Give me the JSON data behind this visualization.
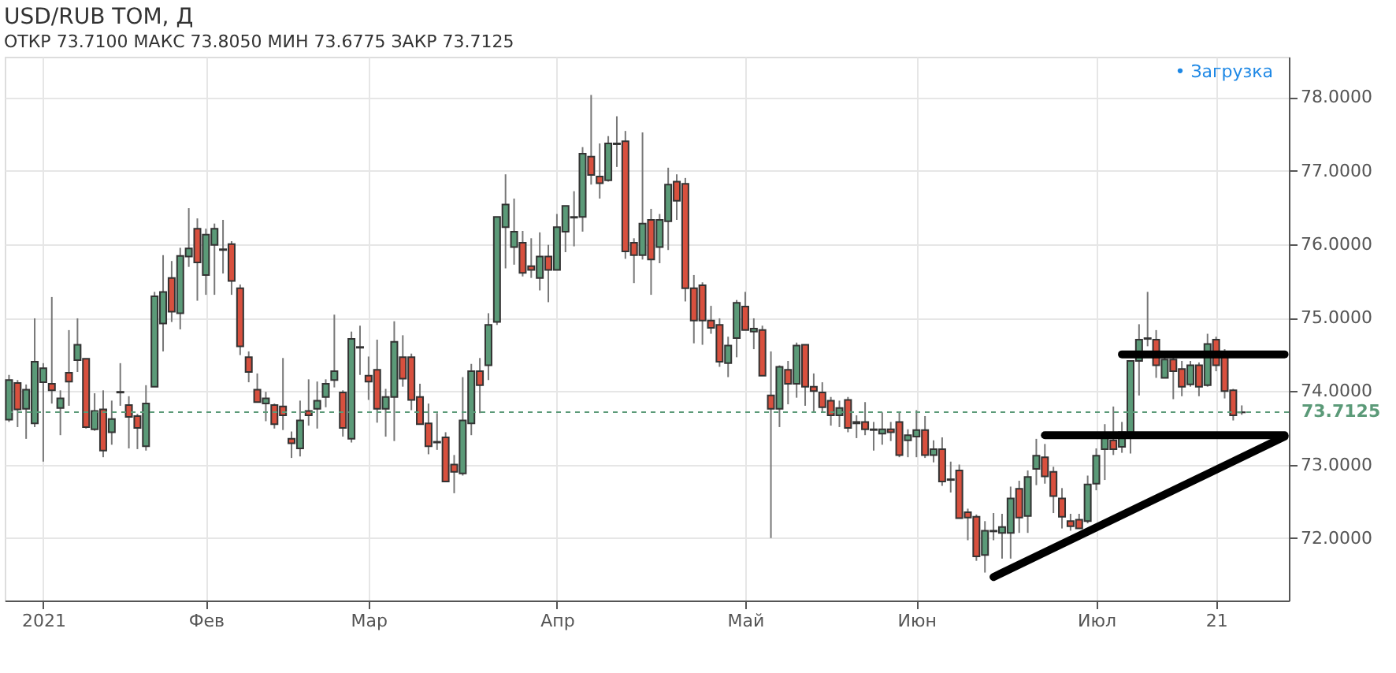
{
  "chart_data": {
    "type": "candlestick",
    "title": "USD/RUB TOM, Д",
    "subtitle": "ОТКР 73.7100 МАКС 73.8050 МИН 73.6775 ЗАКР 73.7125",
    "annotations": [
      "• Загрузка"
    ],
    "categories": [
      null,
      null,
      null,
      null,
      "2021",
      null,
      null,
      null,
      null,
      null,
      null,
      null,
      null,
      null,
      null,
      null,
      null,
      null,
      null,
      null,
      null,
      null,
      null,
      "Фев",
      null,
      null,
      null,
      null,
      null,
      null,
      null,
      null,
      null,
      null,
      null,
      null,
      null,
      null,
      null,
      null,
      null,
      null,
      "Мар",
      null,
      null,
      null,
      null,
      null,
      null,
      null,
      null,
      null,
      null,
      null,
      null,
      null,
      null,
      null,
      null,
      null,
      null,
      null,
      null,
      null,
      "Апр",
      null,
      null,
      null,
      null,
      null,
      null,
      null,
      null,
      null,
      null,
      null,
      null,
      null,
      null,
      null,
      null,
      null,
      null,
      null,
      null,
      null,
      "Май",
      null,
      null,
      null,
      null,
      null,
      null,
      null,
      null,
      null,
      null,
      null,
      null,
      null,
      null,
      null,
      null,
      null,
      null,
      null,
      "Июн",
      null,
      null,
      null,
      null,
      null,
      null,
      null,
      null,
      null,
      null,
      null,
      null,
      null,
      null,
      null,
      null,
      null,
      null,
      null,
      null,
      "Июл",
      null,
      null,
      null,
      null,
      null,
      null,
      null,
      null,
      null,
      null,
      null,
      null,
      null,
      "21",
      null,
      null,
      null,
      null,
      null,
      null,
      null,
      null
    ],
    "ohlc": [
      [
        73.61,
        74.22,
        73.58,
        74.15
      ],
      [
        74.11,
        74.15,
        73.51,
        73.75
      ],
      [
        73.76,
        74.09,
        73.35,
        74.02
      ],
      [
        73.56,
        74.99,
        73.51,
        74.4
      ],
      [
        74.12,
        74.38,
        73.04,
        74.31
      ],
      [
        74.1,
        75.28,
        73.83,
        74.01
      ],
      [
        73.77,
        74.01,
        73.4,
        73.9
      ],
      [
        74.25,
        74.83,
        73.8,
        74.13
      ],
      [
        74.42,
        74.99,
        74.26,
        74.63
      ],
      [
        74.44,
        74.44,
        73.49,
        73.51
      ],
      [
        73.48,
        73.97,
        73.46,
        73.73
      ],
      [
        73.75,
        74.01,
        73.1,
        73.19
      ],
      [
        73.44,
        73.87,
        73.27,
        73.62
      ],
      [
        73.99,
        74.38,
        73.8,
        73.98
      ],
      [
        73.81,
        73.93,
        73.22,
        73.65
      ],
      [
        73.66,
        73.69,
        73.21,
        73.5
      ],
      [
        73.25,
        74.08,
        73.19,
        73.83
      ],
      [
        74.06,
        75.35,
        74.06,
        75.29
      ],
      [
        74.92,
        75.85,
        74.54,
        75.35
      ],
      [
        75.54,
        75.77,
        74.94,
        75.08
      ],
      [
        75.06,
        75.95,
        74.84,
        75.84
      ],
      [
        75.83,
        76.49,
        75.69,
        75.94
      ],
      [
        76.21,
        76.35,
        75.23,
        75.75
      ],
      [
        75.58,
        76.21,
        75.31,
        76.13
      ],
      [
        75.99,
        76.28,
        75.31,
        76.21
      ],
      [
        75.93,
        76.33,
        75.6,
        75.92
      ],
      [
        76.0,
        76.04,
        75.31,
        75.5
      ],
      [
        75.4,
        75.45,
        74.49,
        74.61
      ],
      [
        74.46,
        74.54,
        74.12,
        74.26
      ],
      [
        74.02,
        74.24,
        73.85,
        73.85
      ],
      [
        73.83,
        73.99,
        73.59,
        73.9
      ],
      [
        73.81,
        73.83,
        73.49,
        73.55
      ],
      [
        73.79,
        74.45,
        73.47,
        73.67
      ],
      [
        73.35,
        73.45,
        73.09,
        73.29
      ],
      [
        73.22,
        73.87,
        73.11,
        73.6
      ],
      [
        73.73,
        74.16,
        73.53,
        73.67
      ],
      [
        73.76,
        74.13,
        73.49,
        73.87
      ],
      [
        73.92,
        74.16,
        73.78,
        74.1
      ],
      [
        74.15,
        75.04,
        74.05,
        74.27
      ],
      [
        73.98,
        74.01,
        73.38,
        73.5
      ],
      [
        73.35,
        74.81,
        73.3,
        74.71
      ],
      [
        74.6,
        74.89,
        74.22,
        74.59
      ],
      [
        74.21,
        74.47,
        73.88,
        74.13
      ],
      [
        74.29,
        74.7,
        73.57,
        73.76
      ],
      [
        73.76,
        74.03,
        73.38,
        73.92
      ],
      [
        73.92,
        74.95,
        73.32,
        74.67
      ],
      [
        74.46,
        74.76,
        74.06,
        74.17
      ],
      [
        74.46,
        74.51,
        73.74,
        73.88
      ],
      [
        73.92,
        74.1,
        73.55,
        73.55
      ],
      [
        73.56,
        73.83,
        73.14,
        73.25
      ],
      [
        73.31,
        73.7,
        73.2,
        73.3
      ],
      [
        73.37,
        73.44,
        72.77,
        72.77
      ],
      [
        73.0,
        73.13,
        72.61,
        72.9
      ],
      [
        72.88,
        74.19,
        72.85,
        73.6
      ],
      [
        73.56,
        74.37,
        73.4,
        74.27
      ],
      [
        74.27,
        74.45,
        73.7,
        74.08
      ],
      [
        74.35,
        75.06,
        74.15,
        74.9
      ],
      [
        74.94,
        76.37,
        74.9,
        76.37
      ],
      [
        76.23,
        76.95,
        75.67,
        76.54
      ],
      [
        75.96,
        76.62,
        75.72,
        76.17
      ],
      [
        76.02,
        76.18,
        75.56,
        75.61
      ],
      [
        75.7,
        76.08,
        75.54,
        75.65
      ],
      [
        75.54,
        76.16,
        75.37,
        75.83
      ],
      [
        75.83,
        75.99,
        75.21,
        75.65
      ],
      [
        75.65,
        76.41,
        75.65,
        76.23
      ],
      [
        76.17,
        76.52,
        75.89,
        76.52
      ],
      [
        76.37,
        76.72,
        75.97,
        76.36
      ],
      [
        76.37,
        77.32,
        76.17,
        77.23
      ],
      [
        77.19,
        78.03,
        76.81,
        76.94
      ],
      [
        76.92,
        77.37,
        76.62,
        76.83
      ],
      [
        76.87,
        77.47,
        76.85,
        77.37
      ],
      [
        77.37,
        77.74,
        77.05,
        77.36
      ],
      [
        77.4,
        77.54,
        75.8,
        75.9
      ],
      [
        76.02,
        76.08,
        75.47,
        75.85
      ],
      [
        75.85,
        77.52,
        75.79,
        76.28
      ],
      [
        76.33,
        76.48,
        75.31,
        75.79
      ],
      [
        75.96,
        76.41,
        75.74,
        76.33
      ],
      [
        76.31,
        77.04,
        75.92,
        76.81
      ],
      [
        76.85,
        76.95,
        76.33,
        76.59
      ],
      [
        76.82,
        76.9,
        75.22,
        75.4
      ],
      [
        75.4,
        75.58,
        74.65,
        74.96
      ],
      [
        75.44,
        75.48,
        74.63,
        74.96
      ],
      [
        74.96,
        75.16,
        74.78,
        74.86
      ],
      [
        74.9,
        74.99,
        74.33,
        74.4
      ],
      [
        74.38,
        74.74,
        74.19,
        74.62
      ],
      [
        74.72,
        75.24,
        74.46,
        75.2
      ],
      [
        75.15,
        75.35,
        74.83,
        74.83
      ],
      [
        74.81,
        74.99,
        74.57,
        74.85
      ],
      [
        74.83,
        74.89,
        74.21,
        74.21
      ],
      [
        73.94,
        74.54,
        72.0,
        73.76
      ],
      [
        73.76,
        74.35,
        73.51,
        74.33
      ],
      [
        74.29,
        74.41,
        73.82,
        74.1
      ],
      [
        74.1,
        74.66,
        73.91,
        74.62
      ],
      [
        74.63,
        74.63,
        73.8,
        74.06
      ],
      [
        74.06,
        74.24,
        73.72,
        74.0
      ],
      [
        73.98,
        74.12,
        73.71,
        73.78
      ],
      [
        73.87,
        73.92,
        73.53,
        73.67
      ],
      [
        73.67,
        73.87,
        73.51,
        73.77
      ],
      [
        73.88,
        73.92,
        73.44,
        73.5
      ],
      [
        73.56,
        73.67,
        73.36,
        73.58
      ],
      [
        73.58,
        73.85,
        73.4,
        73.48
      ],
      [
        73.48,
        73.58,
        73.19,
        73.47
      ],
      [
        73.42,
        73.71,
        73.27,
        73.48
      ],
      [
        73.48,
        73.58,
        73.32,
        73.44
      ],
      [
        73.58,
        73.71,
        73.1,
        73.13
      ],
      [
        73.33,
        73.48,
        73.1,
        73.4
      ],
      [
        73.38,
        73.74,
        73.1,
        73.47
      ],
      [
        73.47,
        73.66,
        73.09,
        73.13
      ],
      [
        73.13,
        73.33,
        73.03,
        73.21
      ],
      [
        73.21,
        73.37,
        72.71,
        72.77
      ],
      [
        72.8,
        73.04,
        72.62,
        72.79
      ],
      [
        72.92,
        73.0,
        72.27,
        72.27
      ],
      [
        72.35,
        72.4,
        71.97,
        72.28
      ],
      [
        72.29,
        72.32,
        71.69,
        71.75
      ],
      [
        71.77,
        72.23,
        71.53,
        72.1
      ],
      [
        72.1,
        72.34,
        71.97,
        72.09
      ],
      [
        72.07,
        72.33,
        71.72,
        72.15
      ],
      [
        72.07,
        72.7,
        71.72,
        72.54
      ],
      [
        72.67,
        72.78,
        72.07,
        72.28
      ],
      [
        72.3,
        72.92,
        72.07,
        72.83
      ],
      [
        72.94,
        73.35,
        72.72,
        73.12
      ],
      [
        73.1,
        73.28,
        72.74,
        72.84
      ],
      [
        72.9,
        72.97,
        72.34,
        72.57
      ],
      [
        72.54,
        72.68,
        72.13,
        72.29
      ],
      [
        72.23,
        72.33,
        72.1,
        72.16
      ],
      [
        72.25,
        72.33,
        72.13,
        72.13
      ],
      [
        72.23,
        72.85,
        72.2,
        72.73
      ],
      [
        72.74,
        73.22,
        72.65,
        73.12
      ],
      [
        73.21,
        73.55,
        72.79,
        73.37
      ],
      [
        73.33,
        73.79,
        73.13,
        73.21
      ],
      [
        73.24,
        73.58,
        73.16,
        73.44
      ],
      [
        73.44,
        74.41,
        73.15,
        74.41
      ],
      [
        74.41,
        74.91,
        73.94,
        74.7
      ],
      [
        74.72,
        75.35,
        74.61,
        74.71
      ],
      [
        74.7,
        74.83,
        74.18,
        74.35
      ],
      [
        74.18,
        74.51,
        74.18,
        74.43
      ],
      [
        74.43,
        74.49,
        73.89,
        74.27
      ],
      [
        74.3,
        74.41,
        73.93,
        74.06
      ],
      [
        74.09,
        74.41,
        74.06,
        74.35
      ],
      [
        74.35,
        74.39,
        73.93,
        74.06
      ],
      [
        74.08,
        74.78,
        74.06,
        74.64
      ],
      [
        74.7,
        74.74,
        74.27,
        74.35
      ],
      [
        74.51,
        74.57,
        73.9,
        74.0
      ],
      [
        74.01,
        74.03,
        73.6,
        73.67
      ],
      [
        73.71,
        73.805,
        73.6775,
        73.7125
      ],
      null,
      null,
      null,
      null,
      null
    ],
    "colors": [
      "#5b9a78",
      "#d8503e",
      "#5b9a78",
      "#5b9a78",
      "#5b9a78",
      "#d8503e",
      "#5b9a78",
      "#d8503e",
      "#5b9a78",
      "#d8503e",
      "#5b9a78",
      "#d8503e",
      "#5b9a78",
      "#d8503e",
      "#d8503e",
      "#d8503e",
      "#5b9a78",
      "#5b9a78",
      "#5b9a78",
      "#d8503e",
      "#5b9a78",
      "#5b9a78",
      "#d8503e",
      "#5b9a78",
      "#5b9a78",
      "#d8503e",
      "#d8503e",
      "#d8503e",
      "#d8503e",
      "#d8503e",
      "#5b9a78",
      "#d8503e",
      "#d8503e",
      "#d8503e",
      "#5b9a78",
      "#d8503e",
      "#5b9a78",
      "#5b9a78",
      "#5b9a78",
      "#d8503e",
      "#5b9a78",
      "#d8503e",
      "#d8503e",
      "#d8503e",
      "#5b9a78",
      "#5b9a78",
      "#d8503e",
      "#d8503e",
      "#d8503e",
      "#d8503e",
      "#d8503e",
      "#d8503e",
      "#d8503e",
      "#5b9a78",
      "#5b9a78",
      "#d8503e",
      "#5b9a78",
      "#5b9a78",
      "#5b9a78",
      "#5b9a78",
      "#d8503e",
      "#d8503e",
      "#5b9a78",
      "#d8503e",
      "#5b9a78",
      "#5b9a78",
      "#d8503e",
      "#5b9a78",
      "#d8503e",
      "#d8503e",
      "#5b9a78",
      "#d8503e",
      "#d8503e",
      "#d8503e",
      "#5b9a78",
      "#d8503e",
      "#5b9a78",
      "#5b9a78",
      "#d8503e",
      "#d8503e",
      "#d8503e",
      "#d8503e",
      "#d8503e",
      "#d8503e",
      "#5b9a78",
      "#5b9a78",
      "#d8503e",
      "#5b9a78",
      "#d8503e",
      "#d8503e",
      "#5b9a78",
      "#d8503e",
      "#5b9a78",
      "#d8503e",
      "#d8503e",
      "#d8503e",
      "#d8503e",
      "#5b9a78",
      "#d8503e",
      "#5b9a78",
      "#d8503e",
      "#d8503e",
      "#5b9a78",
      "#d8503e",
      "#d8503e",
      "#5b9a78",
      "#5b9a78",
      "#d8503e",
      "#5b9a78",
      "#d8503e",
      "#d8503e",
      "#d8503e",
      "#d8503e",
      "#d8503e",
      "#5b9a78",
      "#d8503e",
      "#5b9a78",
      "#5b9a78",
      "#d8503e",
      "#5b9a78",
      "#5b9a78",
      "#d8503e",
      "#d8503e",
      "#d8503e",
      "#d8503e",
      "#d8503e",
      "#5b9a78",
      "#5b9a78",
      "#5b9a78",
      "#d8503e",
      "#5b9a78",
      "#5b9a78",
      "#5b9a78",
      "#d8503e",
      "#d8503e",
      "#5b9a78",
      "#d8503e",
      "#d8503e",
      "#5b9a78",
      "#d8503e",
      "#5b9a78",
      "#d8503e",
      "#d8503e",
      "#d8503e",
      "#5b9a78",
      null,
      null,
      null,
      null,
      null
    ],
    "series": [
      {
        "type": "line",
        "color": "#000000",
        "values": [
          null,
          null,
          null,
          null,
          null,
          null,
          null,
          null,
          null,
          null,
          null,
          null,
          null,
          null,
          null,
          null,
          null,
          null,
          null,
          null,
          null,
          null,
          null,
          null,
          null,
          null,
          null,
          null,
          null,
          null,
          null,
          null,
          null,
          null,
          null,
          null,
          null,
          null,
          null,
          null,
          null,
          null,
          null,
          null,
          null,
          null,
          null,
          null,
          null,
          null,
          null,
          null,
          null,
          null,
          null,
          null,
          null,
          null,
          null,
          null,
          null,
          null,
          null,
          null,
          null,
          null,
          null,
          null,
          null,
          null,
          null,
          null,
          null,
          null,
          null,
          null,
          null,
          null,
          null,
          null,
          null,
          null,
          null,
          null,
          null,
          null,
          null,
          null,
          null,
          null,
          null,
          null,
          null,
          null,
          null,
          null,
          null,
          null,
          null,
          null,
          null,
          null,
          null,
          null,
          null,
          null,
          null,
          null,
          null,
          null,
          null,
          null,
          null,
          null,
          null,
          null,
          null,
          null,
          null,
          null,
          null,
          null,
          null,
          null,
          null,
          null,
          null,
          null,
          null,
          null,
          74.5,
          null,
          null,
          null,
          null,
          null,
          null,
          null,
          null,
          null,
          null,
          null,
          null,
          null,
          null,
          null,
          null,
          null,
          null,
          74.5
        ]
      },
      {
        "type": "line",
        "color": "#000000",
        "values": [
          null,
          null,
          null,
          null,
          null,
          null,
          null,
          null,
          null,
          null,
          null,
          null,
          null,
          null,
          null,
          null,
          null,
          null,
          null,
          null,
          null,
          null,
          null,
          null,
          null,
          null,
          null,
          null,
          null,
          null,
          null,
          null,
          null,
          null,
          null,
          null,
          null,
          null,
          null,
          null,
          null,
          null,
          null,
          null,
          null,
          null,
          null,
          null,
          null,
          null,
          null,
          null,
          null,
          null,
          null,
          null,
          null,
          null,
          null,
          null,
          null,
          null,
          null,
          null,
          null,
          null,
          null,
          null,
          null,
          null,
          null,
          null,
          null,
          null,
          null,
          null,
          null,
          null,
          null,
          null,
          null,
          null,
          null,
          null,
          null,
          null,
          null,
          null,
          null,
          null,
          null,
          null,
          null,
          null,
          null,
          null,
          null,
          null,
          null,
          null,
          null,
          null,
          null,
          null,
          null,
          null,
          null,
          null,
          null,
          null,
          null,
          null,
          null,
          null,
          null,
          null,
          null,
          null,
          null,
          null,
          null,
          73.4,
          null,
          null,
          null,
          null,
          null,
          null,
          null,
          null,
          null,
          null,
          null,
          null,
          null,
          null,
          null,
          null,
          null,
          null,
          null,
          null,
          null,
          null,
          null,
          null,
          null,
          null,
          null,
          73.4
        ]
      },
      {
        "type": "line",
        "color": "#000000",
        "values": [
          null,
          null,
          null,
          null,
          null,
          null,
          null,
          null,
          null,
          null,
          null,
          null,
          null,
          null,
          null,
          null,
          null,
          null,
          null,
          null,
          null,
          null,
          null,
          null,
          null,
          null,
          null,
          null,
          null,
          null,
          null,
          null,
          null,
          null,
          null,
          null,
          null,
          null,
          null,
          null,
          null,
          null,
          null,
          null,
          null,
          null,
          null,
          null,
          null,
          null,
          null,
          null,
          null,
          null,
          null,
          null,
          null,
          null,
          null,
          null,
          null,
          null,
          null,
          null,
          null,
          null,
          null,
          null,
          null,
          null,
          null,
          null,
          null,
          null,
          null,
          null,
          null,
          null,
          null,
          null,
          null,
          null,
          null,
          null,
          null,
          null,
          null,
          null,
          null,
          null,
          null,
          null,
          null,
          null,
          null,
          null,
          null,
          null,
          null,
          null,
          null,
          null,
          null,
          null,
          null,
          null,
          null,
          null,
          null,
          null,
          null,
          null,
          null,
          null,
          null,
          71.47,
          null,
          null,
          null,
          null,
          null,
          null,
          null,
          null,
          null,
          null,
          null,
          null,
          null,
          null,
          null,
          null,
          null,
          null,
          null,
          null,
          null,
          null,
          null,
          null,
          null,
          null,
          null,
          null,
          null,
          null,
          null,
          null,
          null,
          73.38
        ]
      }
    ],
    "ref_lines": [
      {
        "axis": "y",
        "value": 73.7125,
        "label": "73.7125",
        "color": "#5b9a78",
        "line_style": "dashed"
      }
    ],
    "ylim": [
      71.15,
      78.55
    ],
    "yticks": [
      {
        "value": 72,
        "label": "72.0000"
      },
      {
        "value": 73,
        "label": "73.0000"
      },
      {
        "value": 74,
        "label": "74.0000"
      },
      {
        "value": 75,
        "label": "75.0000"
      },
      {
        "value": 76,
        "label": "76.0000"
      },
      {
        "value": 77,
        "label": "77.0000"
      },
      {
        "value": 78,
        "label": "78.0000"
      }
    ],
    "grid": true
  }
}
